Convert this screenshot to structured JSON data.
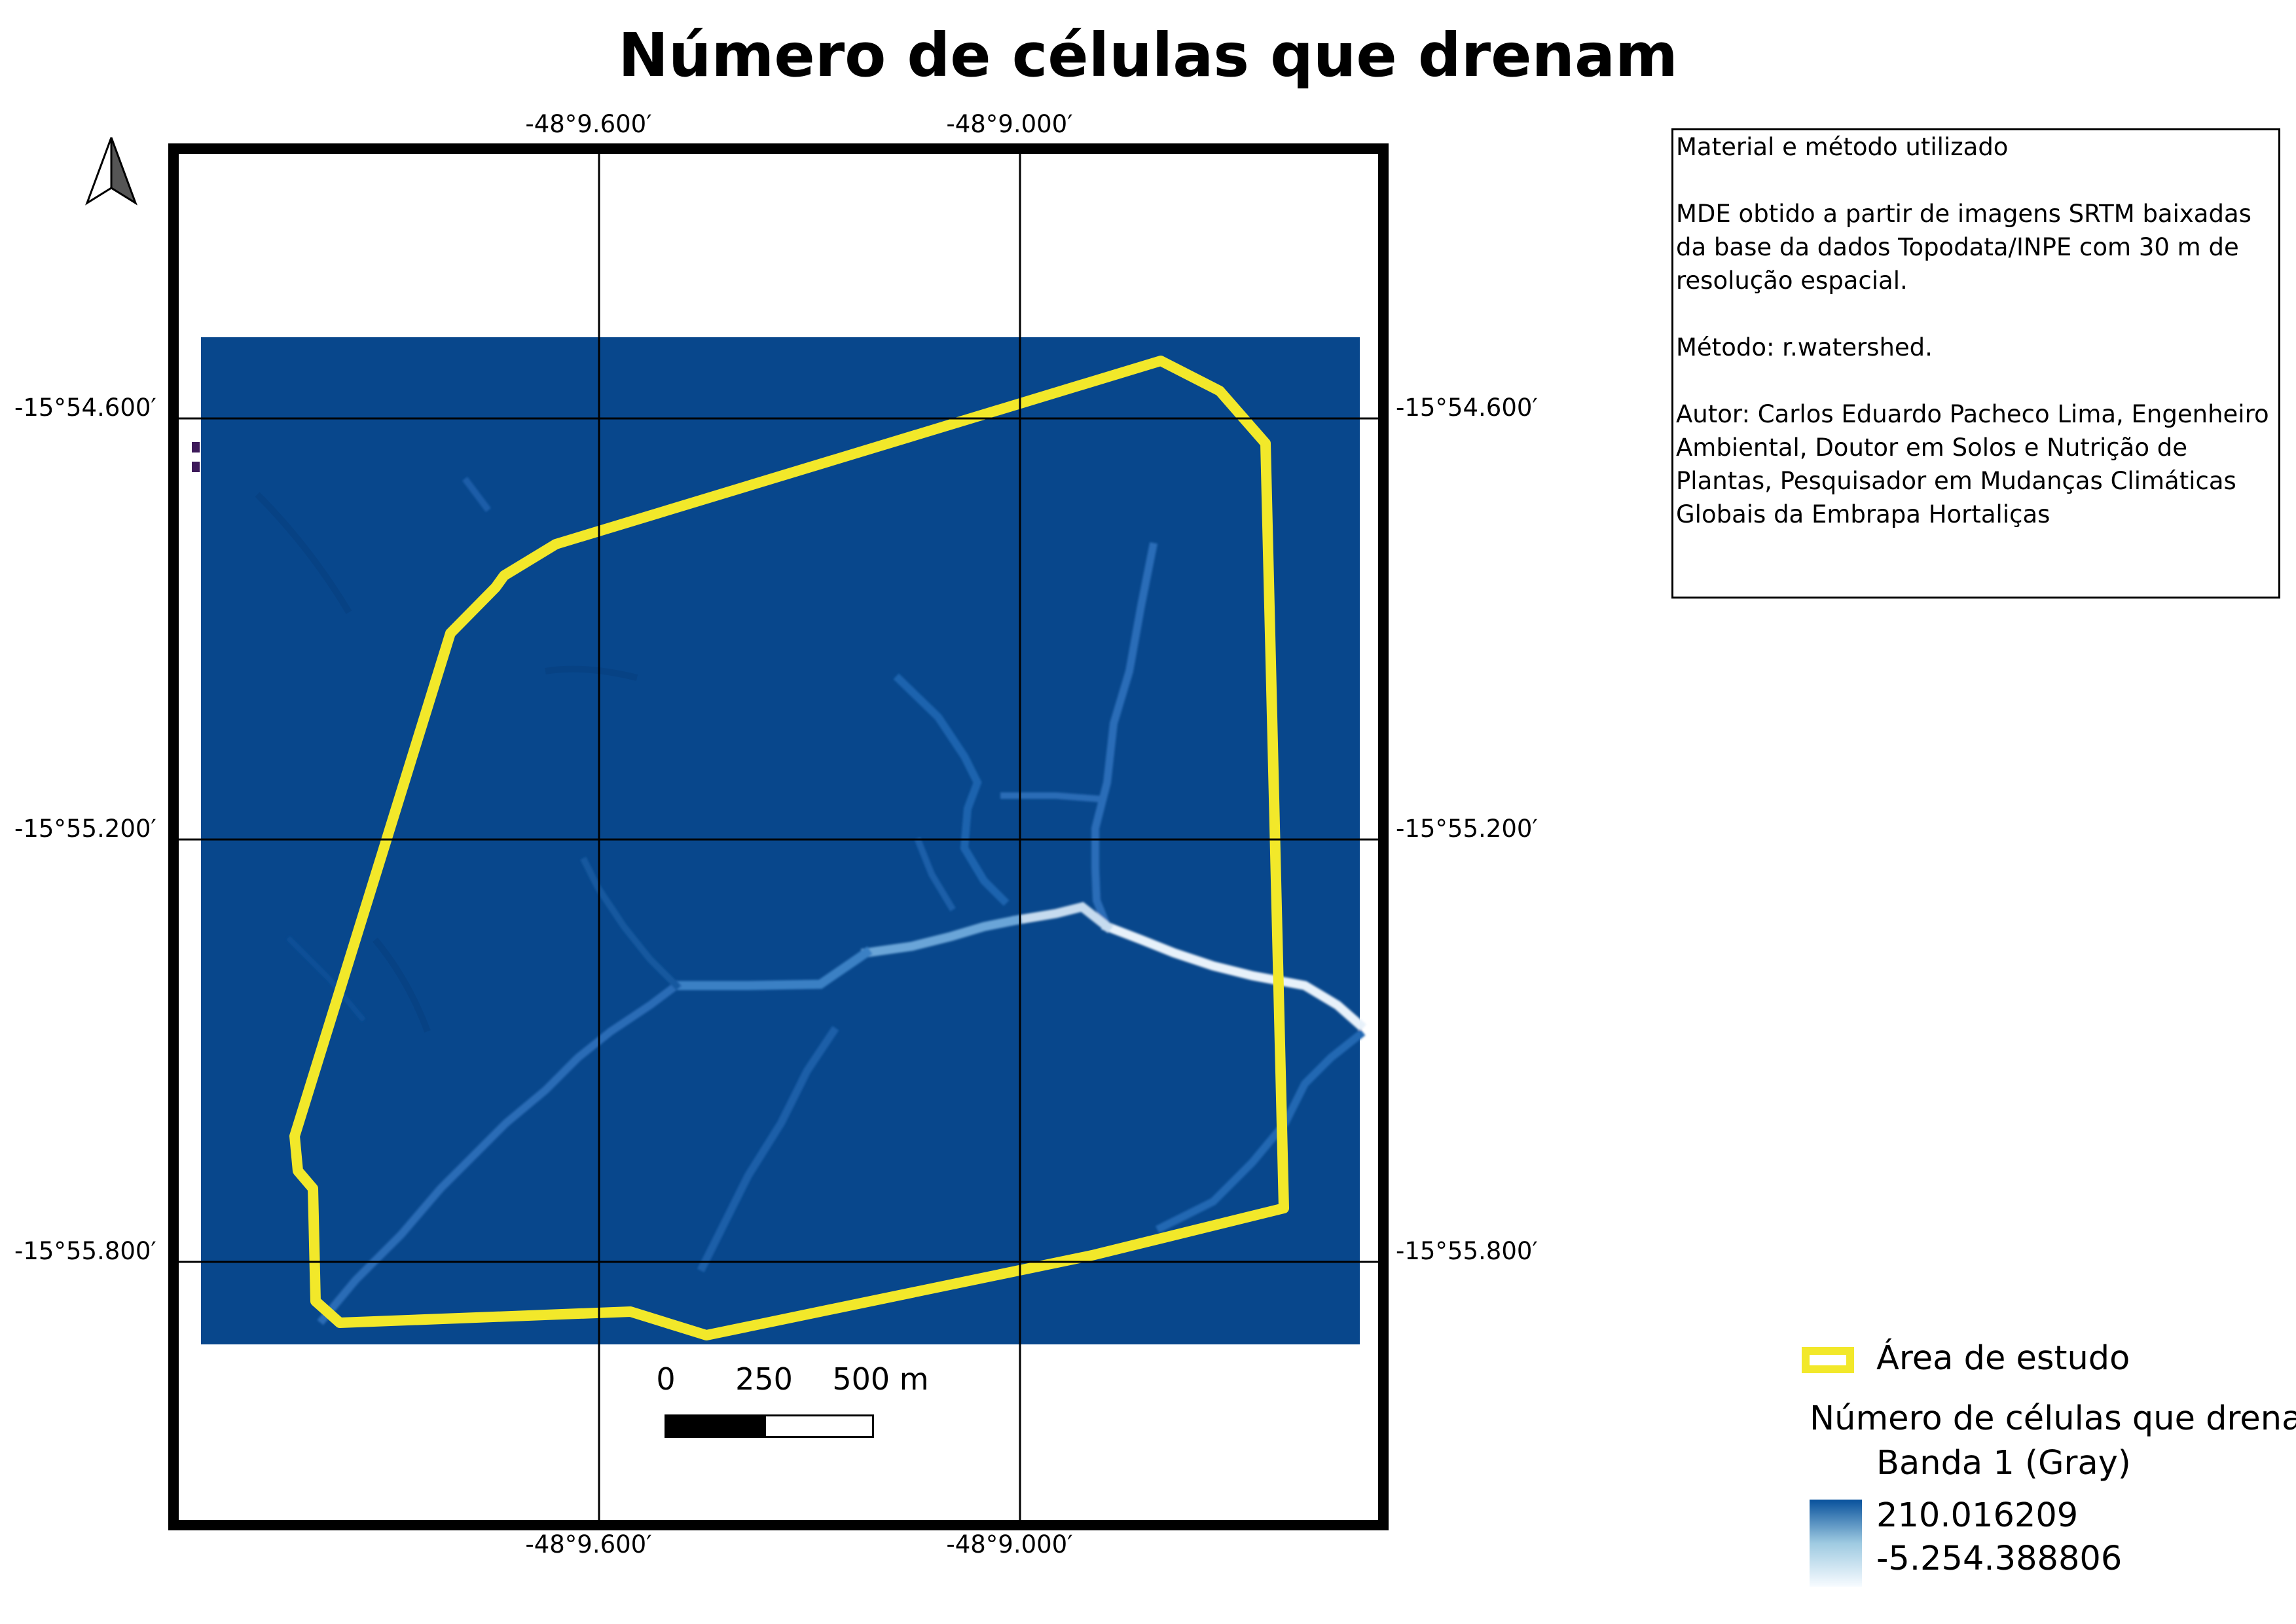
{
  "title": "Número de células que drenam",
  "map": {
    "coords_top": [
      "-48°9.600′",
      "-48°9.000′"
    ],
    "coords_bottom": [
      "-48°9.600′",
      "-48°9.000′"
    ],
    "coords_left": [
      "-15°54.600′",
      "-15°55.200′",
      "-15°55.800′"
    ],
    "coords_right": [
      "-15°54.600′",
      "-15°55.200′",
      "-15°55.800′"
    ],
    "raster_color": "#08478c",
    "boundary_color": "#f2e82a",
    "north_arrow_icon": "north-arrow-icon"
  },
  "scalebar": {
    "labels": [
      "0",
      "250",
      "500 m"
    ]
  },
  "info": {
    "heading": "Material e método utilizado",
    "data_source": "MDE obtido a partir de imagens SRTM baixadas da base da dados Topodata/INPE com 30 m de resolução espacial.",
    "method": "Método: r.watershed.",
    "author": "Autor: Carlos Eduardo Pacheco Lima, Engenheiro Ambiental, Doutor em Solos e Nutrição de Plantas, Pesquisador em Mudanças Climáticas Globais da Embrapa Hortaliças"
  },
  "legend": {
    "study_area": "Área de estudo",
    "layer_title": "Número de células que drenam",
    "band": "Banda 1 (Gray)",
    "max_value": "210.016209",
    "min_value": "-5.254.388806"
  }
}
